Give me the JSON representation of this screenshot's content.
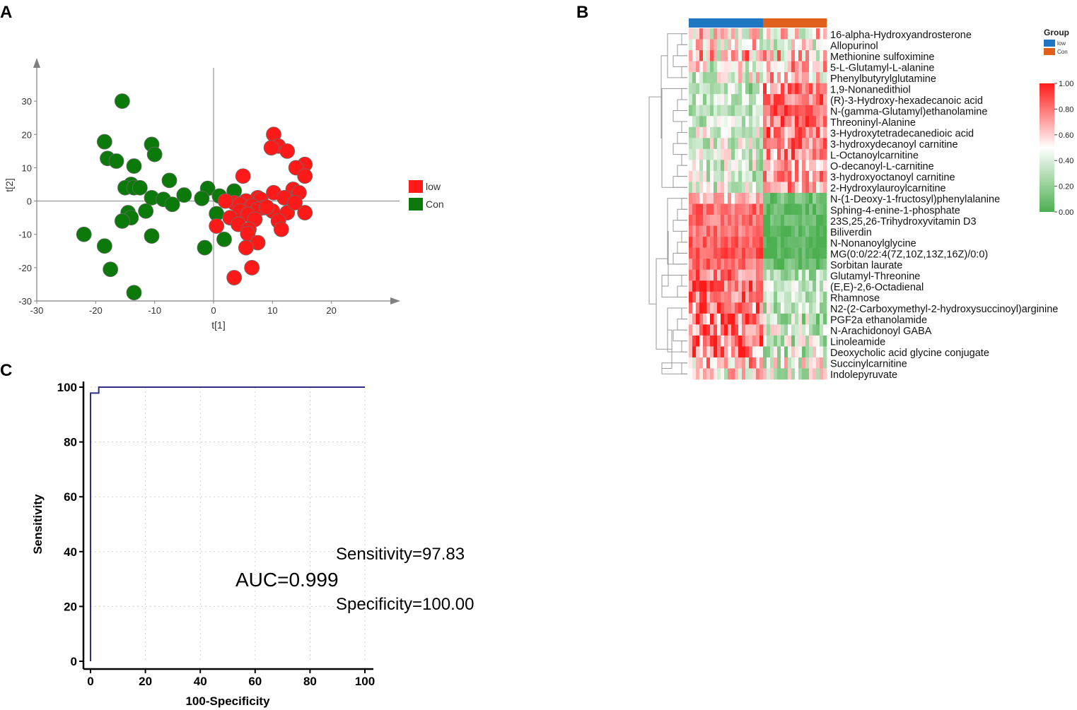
{
  "panel_labels": {
    "a": "A",
    "b": "B",
    "c": "C"
  },
  "colors": {
    "low": "#ff1a1a",
    "con": "#0b7a0b",
    "group_low": "#1f77c4",
    "group_con": "#e0611c",
    "heat_high": "#ff1a1a",
    "heat_mid": "#ffffff",
    "heat_low": "#4caf50",
    "roc_line": "#2e2e8a",
    "axis": "#808080",
    "marker_outline": "#6a6a6a"
  },
  "chart_data": [
    {
      "id": "pca",
      "type": "scatter",
      "xlabel": "t[1]",
      "ylabel": "t[2]",
      "xlim": [
        -30,
        30
      ],
      "ylim": [
        -30,
        40
      ],
      "xticks": [
        -30,
        -20,
        -10,
        0,
        10,
        20
      ],
      "yticks": [
        -30,
        -20,
        -10,
        0,
        10,
        20,
        30
      ],
      "legend": [
        {
          "label": "low",
          "color": "#ff1a1a"
        },
        {
          "label": "Con",
          "color": "#0b7a0b"
        }
      ],
      "series": [
        {
          "name": "low",
          "points": [
            [
              10.2,
              20
            ],
            [
              11,
              16.5
            ],
            [
              9.8,
              16
            ],
            [
              12.5,
              15
            ],
            [
              15.5,
              11
            ],
            [
              14,
              10
            ],
            [
              5,
              7.5
            ],
            [
              15.5,
              7.5
            ],
            [
              13.5,
              3.5
            ],
            [
              14.5,
              2.5
            ],
            [
              10.2,
              2.5
            ],
            [
              12,
              1
            ],
            [
              7.5,
              1
            ],
            [
              8,
              0.5
            ],
            [
              5.5,
              0
            ],
            [
              3.5,
              -0.5
            ],
            [
              4.5,
              -1
            ],
            [
              6.5,
              -1.5
            ],
            [
              8.5,
              -2
            ],
            [
              10,
              -3
            ],
            [
              7.5,
              -2.5
            ],
            [
              12.5,
              -3.5
            ],
            [
              15.5,
              -3.5
            ],
            [
              4.5,
              -3
            ],
            [
              5.8,
              -4
            ],
            [
              2.8,
              -5
            ],
            [
              7,
              -5.5
            ],
            [
              11,
              -6
            ],
            [
              0.5,
              -7.5
            ],
            [
              4.2,
              -7
            ],
            [
              6,
              -8.5
            ],
            [
              11.5,
              -8.5
            ],
            [
              5.8,
              -9.8
            ],
            [
              7.5,
              -12.5
            ],
            [
              5.5,
              -14
            ],
            [
              6.5,
              -20
            ],
            [
              3.5,
              -23
            ],
            [
              2,
              0
            ],
            [
              9,
              -1.8
            ],
            [
              13.8,
              -0.5
            ]
          ]
        },
        {
          "name": "Con",
          "points": [
            [
              -15.5,
              30
            ],
            [
              -18.5,
              17.8
            ],
            [
              -10.5,
              17
            ],
            [
              -18,
              12.8
            ],
            [
              -16.5,
              12
            ],
            [
              -10,
              14
            ],
            [
              -13.5,
              10.5
            ],
            [
              -7.5,
              6.2
            ],
            [
              -14,
              5
            ],
            [
              -15,
              4
            ],
            [
              -13.5,
              4
            ],
            [
              -12.5,
              4
            ],
            [
              -5,
              1.8
            ],
            [
              -1,
              3.8
            ],
            [
              -10.5,
              1
            ],
            [
              -8.5,
              0.5
            ],
            [
              -7,
              -1
            ],
            [
              -2,
              0.8
            ],
            [
              1,
              1.5
            ],
            [
              3.5,
              3
            ],
            [
              -11.5,
              -3
            ],
            [
              -14.5,
              -3.5
            ],
            [
              -14,
              -5
            ],
            [
              -15.5,
              -6
            ],
            [
              0.5,
              -3.8
            ],
            [
              -10.5,
              -10.5
            ],
            [
              -22,
              -10
            ],
            [
              -18.5,
              -13.5
            ],
            [
              -1.5,
              -14
            ],
            [
              1.8,
              -11.5
            ],
            [
              -17.5,
              -20.5
            ],
            [
              -13.5,
              -27.5
            ]
          ]
        }
      ]
    },
    {
      "id": "heatmap",
      "type": "heatmap",
      "legend_title": "Group",
      "groups": [
        {
          "label": "low",
          "color": "#1f77c4"
        },
        {
          "label": "Con",
          "color": "#e0611c"
        }
      ],
      "n_low": 21,
      "n_con": 18,
      "colorbar_ticks": [
        "1.00",
        "0.80",
        "0.60",
        "0.40",
        "0.20",
        "0.00"
      ],
      "rows": [
        {
          "label": "16-alpha-Hydroxyandrosterone",
          "low": 0.5,
          "con": 0.5,
          "contrast": 0.35
        },
        {
          "label": "Allopurinol",
          "low": 0.55,
          "con": 0.5,
          "contrast": 0.3
        },
        {
          "label": "Methionine sulfoximine",
          "low": 0.6,
          "con": 0.6,
          "contrast": 0.35
        },
        {
          "label": "5-L-Glutamyl-L-alanine",
          "low": 0.45,
          "con": 0.62,
          "contrast": 0.3
        },
        {
          "label": "Phenylbutyrylglutamine",
          "low": 0.45,
          "con": 0.6,
          "contrast": 0.3
        },
        {
          "label": "1,9-Nonanedithiol",
          "low": 0.3,
          "con": 0.72,
          "contrast": 0.25
        },
        {
          "label": "(R)-3-Hydroxy-hexadecanoic acid",
          "low": 0.35,
          "con": 0.82,
          "contrast": 0.2
        },
        {
          "label": "N-(gamma-Glutamyl)ethanolamine",
          "low": 0.3,
          "con": 0.85,
          "contrast": 0.15
        },
        {
          "label": "Threoninyl-Alanine",
          "low": 0.35,
          "con": 0.8,
          "contrast": 0.2
        },
        {
          "label": "3-Hydroxytetradecanedioic acid",
          "low": 0.45,
          "con": 0.8,
          "contrast": 0.25
        },
        {
          "label": "3-hydroxydecanoyl carnitine",
          "low": 0.4,
          "con": 0.78,
          "contrast": 0.25
        },
        {
          "label": "L-Octanoylcarnitine",
          "low": 0.38,
          "con": 0.75,
          "contrast": 0.25
        },
        {
          "label": "O-decanoyl-L-carnitine",
          "low": 0.38,
          "con": 0.72,
          "contrast": 0.25
        },
        {
          "label": "3-hydroxyoctanoyl carnitine",
          "low": 0.38,
          "con": 0.72,
          "contrast": 0.25
        },
        {
          "label": "2-Hydroxylauroylcarnitine",
          "low": 0.4,
          "con": 0.7,
          "contrast": 0.25
        },
        {
          "label": "N-(1-Deoxy-1-fructosyl)phenylalanine",
          "low": 0.62,
          "con": 0.08,
          "contrast": 0.15
        },
        {
          "label": "Sphing-4-enine-1-phosphate",
          "low": 0.82,
          "con": 0.05,
          "contrast": 0.12
        },
        {
          "label": "23S,25,26-Trihydroxyvitamin D3",
          "low": 0.8,
          "con": 0.05,
          "contrast": 0.12
        },
        {
          "label": "Biliverdin",
          "low": 0.82,
          "con": 0.05,
          "contrast": 0.12
        },
        {
          "label": "N-Nonanoylglycine",
          "low": 0.85,
          "con": 0.04,
          "contrast": 0.1
        },
        {
          "label": "MG(0:0/22:4(7Z,10Z,13Z,16Z)/0:0)",
          "low": 0.88,
          "con": 0.04,
          "contrast": 0.1
        },
        {
          "label": "Sorbitan laurate",
          "low": 0.82,
          "con": 0.08,
          "contrast": 0.12
        },
        {
          "label": "Glutamyl-Threonine",
          "low": 0.8,
          "con": 0.3,
          "contrast": 0.2
        },
        {
          "label": "(E,E)-2,6-Octadienal",
          "low": 0.82,
          "con": 0.35,
          "contrast": 0.2
        },
        {
          "label": "Rhamnose",
          "low": 0.8,
          "con": 0.35,
          "contrast": 0.2
        },
        {
          "label": "N2-(2-Carboxymethyl-2-hydroxysuccinoyl)arginine",
          "low": 0.78,
          "con": 0.3,
          "contrast": 0.3
        },
        {
          "label": "PGF2a ethanolamide",
          "low": 0.8,
          "con": 0.35,
          "contrast": 0.3
        },
        {
          "label": "N-Arachidonoyl GABA",
          "low": 0.8,
          "con": 0.35,
          "contrast": 0.3
        },
        {
          "label": "Linoleamide",
          "low": 0.78,
          "con": 0.35,
          "contrast": 0.3
        },
        {
          "label": "Deoxycholic acid glycine conjugate",
          "low": 0.78,
          "con": 0.38,
          "contrast": 0.3
        },
        {
          "label": "Succinylcarnitine",
          "low": 0.65,
          "con": 0.45,
          "contrast": 0.3
        },
        {
          "label": "Indolepyruvate",
          "low": 0.55,
          "con": 0.45,
          "contrast": 0.3
        }
      ]
    },
    {
      "id": "roc",
      "type": "line",
      "xlabel": "100-Specificity",
      "ylabel": "Sensitivity",
      "xlim": [
        0,
        100
      ],
      "ylim": [
        0,
        100
      ],
      "xticks": [
        0,
        20,
        40,
        60,
        80,
        100
      ],
      "yticks": [
        0,
        20,
        40,
        60,
        80,
        100
      ],
      "grid": true,
      "points": [
        [
          0,
          0
        ],
        [
          0,
          97.83
        ],
        [
          3,
          97.83
        ],
        [
          3,
          100
        ],
        [
          100,
          100
        ]
      ],
      "annotations": {
        "auc": "AUC=0.999",
        "sensitivity": "Sensitivity=97.83",
        "specificity": "Specificity=100.00"
      }
    }
  ]
}
